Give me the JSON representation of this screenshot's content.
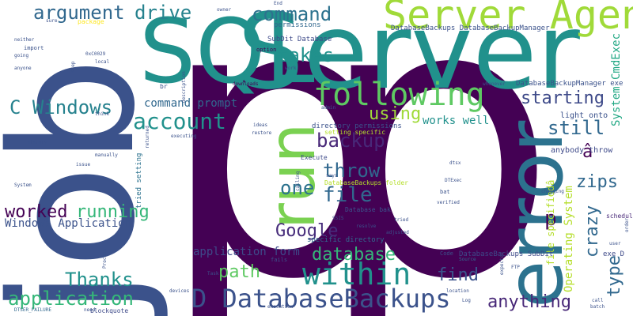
{
  "words": [
    {
      "text": "p",
      "color": "#440154"
    },
    {
      "text": "p",
      "color": "#440154"
    },
    {
      "text": "job",
      "color": "#3b528b"
    },
    {
      "text": "SQL",
      "color": "#21918c"
    },
    {
      "text": "Server",
      "color": "#21918c"
    },
    {
      "text": "error",
      "color": "#2c728e"
    },
    {
      "text": "run",
      "color": "#7ad151"
    },
    {
      "text": "Server Agent",
      "color": "#a0da39"
    },
    {
      "text": "following",
      "color": "#5ec962"
    },
    {
      "text": "D DatabaseBackups",
      "color": "#3b528b"
    },
    {
      "text": "within",
      "color": "#21918c"
    },
    {
      "text": "argument",
      "color": "#31688e"
    },
    {
      "text": "drive",
      "color": "#26828e"
    },
    {
      "text": "command",
      "color": "#2c728e"
    },
    {
      "text": "takes",
      "color": "#21918c"
    },
    {
      "text": "C Windows",
      "color": "#26828e"
    },
    {
      "text": "account",
      "color": "#21918c"
    },
    {
      "text": "starting",
      "color": "#3e4a89"
    },
    {
      "text": "backup",
      "color": "#482878"
    },
    {
      "text": "still",
      "color": "#31688e"
    },
    {
      "text": "throw",
      "color": "#31688e"
    },
    {
      "text": "file",
      "color": "#31688e"
    },
    {
      "text": "one",
      "color": "#2c728e"
    },
    {
      "text": "worked",
      "color": "#440154"
    },
    {
      "text": "running",
      "color": "#35b779"
    },
    {
      "text": "Google",
      "color": "#472d7b"
    },
    {
      "text": "zips",
      "color": "#31688e"
    },
    {
      "text": "crazy",
      "color": "#31688e"
    },
    {
      "text": "database",
      "color": "#35b779"
    },
    {
      "text": "path",
      "color": "#5ec962"
    },
    {
      "text": "Thanks",
      "color": "#21918c"
    },
    {
      "text": "application",
      "color": "#35b779"
    },
    {
      "text": "find",
      "color": "#3b528b"
    },
    {
      "text": "anything",
      "color": "#482878"
    },
    {
      "text": "type",
      "color": "#31688e"
    },
    {
      "text": "using",
      "color": "#a0da39"
    },
    {
      "text": "works well",
      "color": "#21918c"
    },
    {
      "text": "command prompt",
      "color": "#31688e"
    },
    {
      "text": "Windows Application",
      "color": "#3b528b"
    },
    {
      "text": "application form",
      "color": "#3e4a89"
    },
    {
      "text": "System CmdExec",
      "color": "#22a884"
    },
    {
      "text": "Operating System",
      "color": "#b5de2b"
    },
    {
      "text": "file specifiedâ",
      "color": "#b5de2b"
    },
    {
      "text": "â",
      "color": "#440154"
    },
    {
      "text": "light onto",
      "color": "#3b528b"
    },
    {
      "text": "anybody throw",
      "color": "#3e4a89"
    },
    {
      "text": "DatabaseBackupManager exe",
      "color": "#3b528b"
    },
    {
      "text": "DatabaseBackups DatabaseBackupManager",
      "color": "#3b528b"
    },
    {
      "text": "DatabaseBackups SubDit",
      "color": "#3e4a89"
    },
    {
      "text": "directory permissions",
      "color": "#3b528b"
    },
    {
      "text": "permissions",
      "color": "#31688e"
    },
    {
      "text": "SubDit Database",
      "color": "#3e4a89"
    },
    {
      "text": "tried setting",
      "color": "#2c728e"
    },
    {
      "text": "setting specific",
      "color": "#b5de2b"
    },
    {
      "text": "DatabaseBackups folder",
      "color": "#b5de2b"
    },
    {
      "text": "Database bak",
      "color": "#3b528b"
    },
    {
      "text": "specific directory",
      "color": "#31688e"
    },
    {
      "text": "Execute",
      "color": "#3e4a89"
    },
    {
      "text": "exe D",
      "color": "#3e4a89"
    },
    {
      "text": "schedule",
      "color": "#482878"
    },
    {
      "text": "package",
      "color": "#fde725"
    },
    {
      "text": "option",
      "color": "#440154"
    },
    {
      "text": "downloads",
      "color": "#440154"
    },
    {
      "text": "br",
      "color": "#3b528b"
    },
    {
      "text": "blockquote",
      "color": "#3e4a89"
    },
    {
      "text": "DTSER_FAILURE",
      "color": "#31688e"
    },
    {
      "text": "Code",
      "color": "#3b528b"
    },
    {
      "text": "Log",
      "color": "#3b528b"
    },
    {
      "text": "Process",
      "color": "#3b528b"
    },
    {
      "text": "Source",
      "color": "#31688e"
    },
    {
      "text": "bat",
      "color": "#3b528b"
    },
    {
      "text": "dtsx",
      "color": "#3b528b"
    },
    {
      "text": "DTExec",
      "color": "#3b528b"
    },
    {
      "text": "verified",
      "color": "#3b528b"
    },
    {
      "text": "adjusted",
      "color": "#3b528b"
    },
    {
      "text": "resolve",
      "color": "#3b528b"
    },
    {
      "text": "fails",
      "color": "#3b528b"
    },
    {
      "text": "ideas",
      "color": "#3b528b"
    },
    {
      "text": "restore",
      "color": "#3b528b"
    },
    {
      "text": "admin",
      "color": "#3b528b"
    },
    {
      "text": "owner",
      "color": "#3b528b"
    },
    {
      "text": "End",
      "color": "#3b528b"
    },
    {
      "text": "sure",
      "color": "#3b528b"
    },
    {
      "text": "neither",
      "color": "#3b528b"
    },
    {
      "text": "import",
      "color": "#3b528b"
    },
    {
      "text": "going",
      "color": "#3b528b"
    },
    {
      "text": "anyone",
      "color": "#3b528b"
    },
    {
      "text": "0xC0029",
      "color": "#3b528b"
    },
    {
      "text": "local",
      "color": "#3b528b"
    },
    {
      "text": "step",
      "color": "#3b528b"
    },
    {
      "text": "work",
      "color": "#3b528b"
    },
    {
      "text": "description",
      "color": "#3b528b"
    },
    {
      "text": "whenever",
      "color": "#3b528b"
    },
    {
      "text": "think",
      "color": "#3b528b"
    },
    {
      "text": "history",
      "color": "#3b528b"
    },
    {
      "text": "manually",
      "color": "#3b528b"
    },
    {
      "text": "issue",
      "color": "#3b528b"
    },
    {
      "text": "System",
      "color": "#3b528b"
    },
    {
      "text": "returned",
      "color": "#3b528b"
    },
    {
      "text": "executing",
      "color": "#3b528b"
    },
    {
      "text": "calling",
      "color": "#3b528b"
    },
    {
      "text": "says",
      "color": "#3b528b"
    },
    {
      "text": "SSIS",
      "color": "#3b528b"
    },
    {
      "text": "tried",
      "color": "#3b528b"
    },
    {
      "text": "changing",
      "color": "#3b528b"
    },
    {
      "text": "user",
      "color": "#3b528b"
    },
    {
      "text": "order",
      "color": "#3b528b"
    },
    {
      "text": "call",
      "color": "#3b528b"
    },
    {
      "text": "batch",
      "color": "#3b528b"
    },
    {
      "text": "FTP",
      "color": "#3b528b"
    },
    {
      "text": "location",
      "color": "#3b528b"
    },
    {
      "text": "execution",
      "color": "#3b528b"
    },
    {
      "text": "devices",
      "color": "#3b528b"
    },
    {
      "text": "edit",
      "color": "#3b528b"
    },
    {
      "text": "need",
      "color": "#3b528b"
    },
    {
      "text": "Task",
      "color": "#3b528b"
    },
    {
      "text": "expected",
      "color": "#3b528b"
    }
  ]
}
